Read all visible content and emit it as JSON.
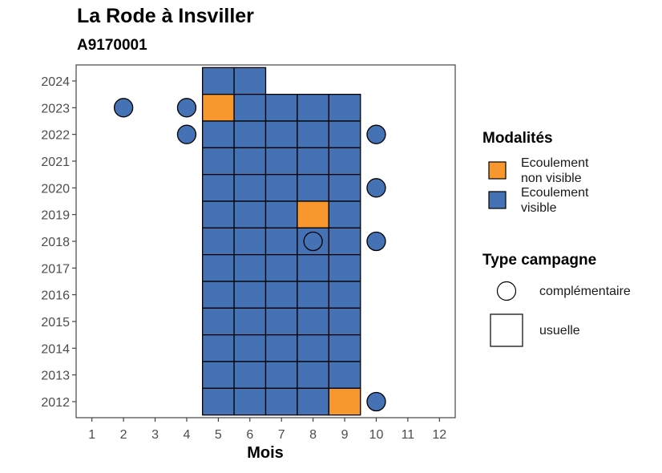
{
  "chart_data": {
    "type": "heatmap",
    "title": "La Rode à Insviller",
    "subtitle": "A9170001",
    "xlabel": "Mois",
    "ylabel": "",
    "x_ticks": [
      1,
      2,
      3,
      4,
      5,
      6,
      7,
      8,
      9,
      10,
      11,
      12
    ],
    "y_ticks": [
      2012,
      2013,
      2014,
      2015,
      2016,
      2017,
      2018,
      2019,
      2020,
      2021,
      2022,
      2023,
      2024
    ],
    "xlim": [
      0.5,
      12.5
    ],
    "ylim": [
      2011.4,
      2024.6
    ],
    "grid": false,
    "colors": {
      "visible": "#4472b4",
      "non_visible": "#f7972e"
    },
    "legend": {
      "placement": "right",
      "modalites_title": "Modalités",
      "modalites": [
        {
          "key": "non_visible",
          "lines": [
            "Ecoulement",
            "non visible"
          ],
          "color": "#f7972e"
        },
        {
          "key": "visible",
          "lines": [
            "Ecoulement",
            "visible"
          ],
          "color": "#4472b4"
        }
      ],
      "type_title": "Type campagne",
      "types": [
        {
          "key": "complementaire",
          "label": "complémentaire",
          "shape": "circle"
        },
        {
          "key": "usuelle",
          "label": "usuelle",
          "shape": "square"
        }
      ]
    },
    "squares": [
      {
        "month": 5,
        "year": 2024,
        "status": "visible"
      },
      {
        "month": 6,
        "year": 2024,
        "status": "visible"
      },
      {
        "month": 5,
        "year": 2023,
        "status": "non_visible"
      },
      {
        "month": 6,
        "year": 2023,
        "status": "visible"
      },
      {
        "month": 7,
        "year": 2023,
        "status": "visible"
      },
      {
        "month": 8,
        "year": 2023,
        "status": "visible"
      },
      {
        "month": 9,
        "year": 2023,
        "status": "visible"
      },
      {
        "month": 5,
        "year": 2022,
        "status": "visible"
      },
      {
        "month": 6,
        "year": 2022,
        "status": "visible"
      },
      {
        "month": 7,
        "year": 2022,
        "status": "visible"
      },
      {
        "month": 8,
        "year": 2022,
        "status": "visible"
      },
      {
        "month": 9,
        "year": 2022,
        "status": "visible"
      },
      {
        "month": 5,
        "year": 2021,
        "status": "visible"
      },
      {
        "month": 6,
        "year": 2021,
        "status": "visible"
      },
      {
        "month": 7,
        "year": 2021,
        "status": "visible"
      },
      {
        "month": 8,
        "year": 2021,
        "status": "visible"
      },
      {
        "month": 9,
        "year": 2021,
        "status": "visible"
      },
      {
        "month": 5,
        "year": 2020,
        "status": "visible"
      },
      {
        "month": 6,
        "year": 2020,
        "status": "visible"
      },
      {
        "month": 7,
        "year": 2020,
        "status": "visible"
      },
      {
        "month": 8,
        "year": 2020,
        "status": "visible"
      },
      {
        "month": 9,
        "year": 2020,
        "status": "visible"
      },
      {
        "month": 5,
        "year": 2019,
        "status": "visible"
      },
      {
        "month": 6,
        "year": 2019,
        "status": "visible"
      },
      {
        "month": 7,
        "year": 2019,
        "status": "visible"
      },
      {
        "month": 8,
        "year": 2019,
        "status": "non_visible"
      },
      {
        "month": 9,
        "year": 2019,
        "status": "visible"
      },
      {
        "month": 5,
        "year": 2018,
        "status": "visible"
      },
      {
        "month": 6,
        "year": 2018,
        "status": "visible"
      },
      {
        "month": 7,
        "year": 2018,
        "status": "visible"
      },
      {
        "month": 8,
        "year": 2018,
        "status": "visible"
      },
      {
        "month": 9,
        "year": 2018,
        "status": "visible"
      },
      {
        "month": 5,
        "year": 2017,
        "status": "visible"
      },
      {
        "month": 6,
        "year": 2017,
        "status": "visible"
      },
      {
        "month": 7,
        "year": 2017,
        "status": "visible"
      },
      {
        "month": 8,
        "year": 2017,
        "status": "visible"
      },
      {
        "month": 9,
        "year": 2017,
        "status": "visible"
      },
      {
        "month": 5,
        "year": 2016,
        "status": "visible"
      },
      {
        "month": 6,
        "year": 2016,
        "status": "visible"
      },
      {
        "month": 7,
        "year": 2016,
        "status": "visible"
      },
      {
        "month": 8,
        "year": 2016,
        "status": "visible"
      },
      {
        "month": 9,
        "year": 2016,
        "status": "visible"
      },
      {
        "month": 5,
        "year": 2015,
        "status": "visible"
      },
      {
        "month": 6,
        "year": 2015,
        "status": "visible"
      },
      {
        "month": 7,
        "year": 2015,
        "status": "visible"
      },
      {
        "month": 8,
        "year": 2015,
        "status": "visible"
      },
      {
        "month": 9,
        "year": 2015,
        "status": "visible"
      },
      {
        "month": 5,
        "year": 2014,
        "status": "visible"
      },
      {
        "month": 6,
        "year": 2014,
        "status": "visible"
      },
      {
        "month": 7,
        "year": 2014,
        "status": "visible"
      },
      {
        "month": 8,
        "year": 2014,
        "status": "visible"
      },
      {
        "month": 9,
        "year": 2014,
        "status": "visible"
      },
      {
        "month": 5,
        "year": 2013,
        "status": "visible"
      },
      {
        "month": 6,
        "year": 2013,
        "status": "visible"
      },
      {
        "month": 7,
        "year": 2013,
        "status": "visible"
      },
      {
        "month": 8,
        "year": 2013,
        "status": "visible"
      },
      {
        "month": 9,
        "year": 2013,
        "status": "visible"
      },
      {
        "month": 5,
        "year": 2012,
        "status": "visible"
      },
      {
        "month": 6,
        "year": 2012,
        "status": "visible"
      },
      {
        "month": 7,
        "year": 2012,
        "status": "visible"
      },
      {
        "month": 8,
        "year": 2012,
        "status": "visible"
      },
      {
        "month": 9,
        "year": 2012,
        "status": "non_visible"
      }
    ],
    "circles": [
      {
        "month": 2,
        "year": 2023,
        "status": "visible"
      },
      {
        "month": 4,
        "year": 2023,
        "status": "visible"
      },
      {
        "month": 4,
        "year": 2022,
        "status": "visible"
      },
      {
        "month": 10,
        "year": 2022,
        "status": "visible"
      },
      {
        "month": 10,
        "year": 2020,
        "status": "visible"
      },
      {
        "month": 8,
        "year": 2018,
        "status": "visible"
      },
      {
        "month": 10,
        "year": 2018,
        "status": "visible"
      },
      {
        "month": 10,
        "year": 2012,
        "status": "visible"
      }
    ]
  }
}
